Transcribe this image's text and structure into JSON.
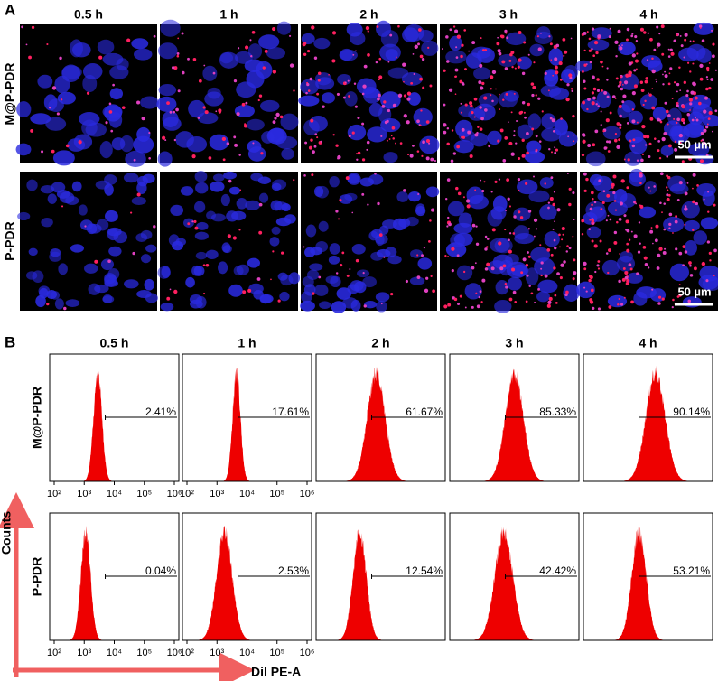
{
  "panel_a": {
    "label": "A",
    "columns": [
      "0.5 h",
      "1 h",
      "2 h",
      "3 h",
      "4 h"
    ],
    "rows": [
      "M@P-PDR",
      "P-PDR"
    ],
    "scale_bar": "50 µm"
  },
  "panel_b": {
    "label": "B",
    "columns": [
      "0.5 h",
      "1 h",
      "2 h",
      "3 h",
      "4 h"
    ],
    "rows": [
      "M@P-PDR",
      "P-PDR"
    ],
    "percentages": [
      [
        "2.41%",
        "17.61%",
        "61.67%",
        "85.33%",
        "90.14%"
      ],
      [
        "0.04%",
        "2.53%",
        "12.54%",
        "42.42%",
        "53.21%"
      ]
    ],
    "x_ticks": [
      "10²",
      "10³",
      "10⁴",
      "10⁵",
      "10⁶"
    ],
    "y_axis": "Counts",
    "x_axis": "Dil PE-A"
  }
}
